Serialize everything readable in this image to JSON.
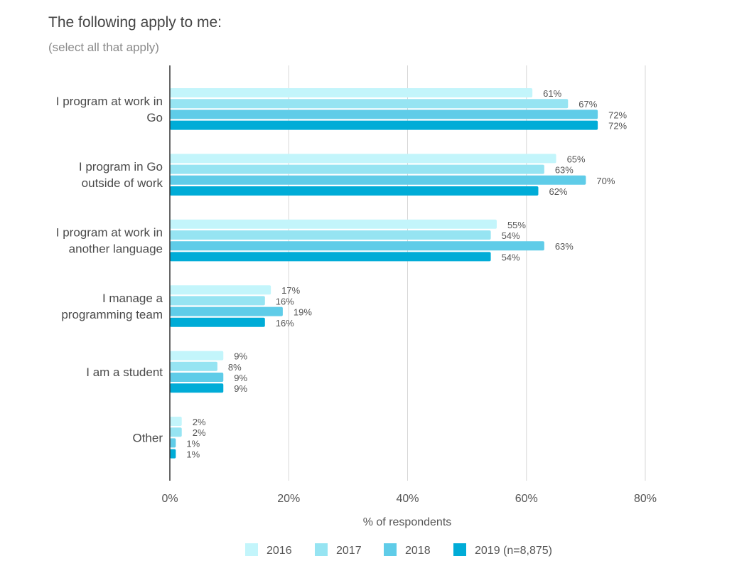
{
  "chart_data": {
    "type": "bar",
    "orientation": "horizontal",
    "title": "The following apply to me:",
    "subtitle": "(select all that apply)",
    "xlabel": "% of respondents",
    "xlim": [
      0,
      80
    ],
    "xticks": [
      "0%",
      "20%",
      "40%",
      "60%",
      "80%"
    ],
    "xtick_values": [
      0,
      20,
      40,
      60,
      80
    ],
    "grid": true,
    "legend_position": "bottom",
    "categories": [
      [
        "I program at work in",
        "Go"
      ],
      [
        "I program in Go",
        "outside of work"
      ],
      [
        "I program at work in",
        "another language"
      ],
      [
        "I manage a",
        "programming team"
      ],
      [
        "I am a student"
      ],
      [
        "Other"
      ]
    ],
    "series": [
      {
        "name": "2016",
        "color": "#c3f5fb",
        "values": [
          61,
          65,
          55,
          17,
          9,
          2
        ],
        "labels": [
          "61%",
          "65%",
          "55%",
          "17%",
          "9%",
          "2%"
        ]
      },
      {
        "name": "2017",
        "color": "#96e4f2",
        "values": [
          67,
          63,
          54,
          16,
          8,
          2
        ],
        "labels": [
          "67%",
          "63%",
          "54%",
          "16%",
          "8%",
          "2%"
        ]
      },
      {
        "name": "2018",
        "color": "#5fcce8",
        "values": [
          72,
          70,
          63,
          19,
          9,
          1
        ],
        "labels": [
          "72%",
          "70%",
          "63%",
          "19%",
          "9%",
          "1%"
        ]
      },
      {
        "name": "2019 (n=8,875)",
        "color": "#00acd7",
        "values": [
          72,
          62,
          54,
          16,
          9,
          1
        ],
        "labels": [
          "72%",
          "62%",
          "54%",
          "16%",
          "9%",
          "1%"
        ]
      }
    ]
  }
}
